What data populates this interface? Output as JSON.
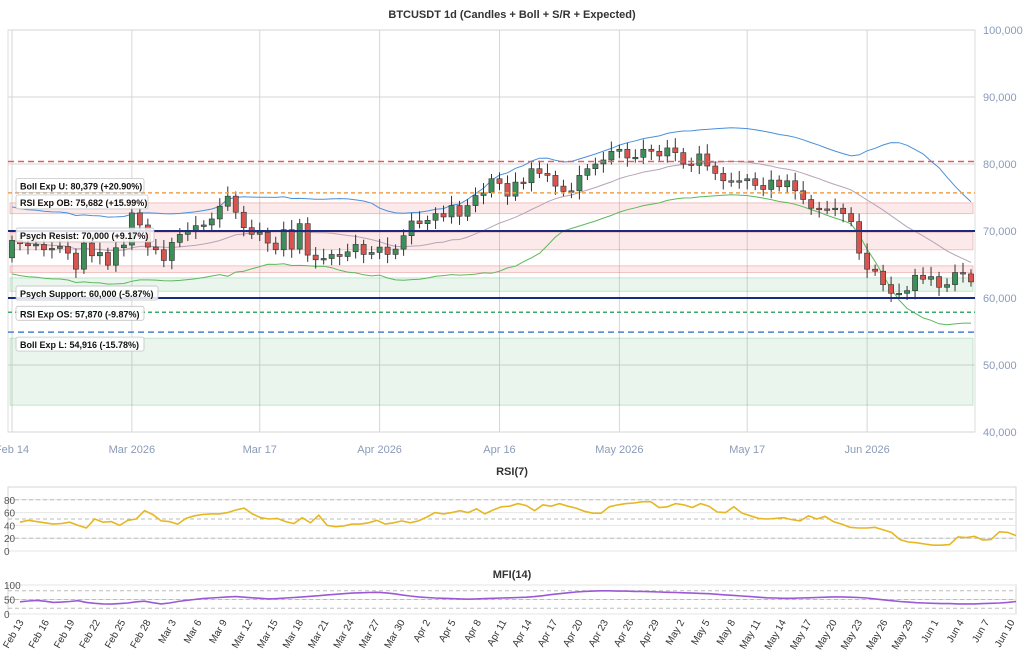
{
  "chart_data": [
    {
      "type": "candlestick",
      "title": "BTCUSDT 1d (Candles + Boll + S/R + Expected)",
      "ylim": [
        40000,
        100000
      ],
      "y_ticks": [
        "40,000",
        "50,000",
        "60,000",
        "70,000",
        "80,000",
        "90,000",
        "100,000"
      ],
      "y_tick_values": [
        40000,
        50000,
        60000,
        70000,
        80000,
        90000,
        100000
      ],
      "x_ticks": [
        "Feb 14",
        "Mar 2026",
        "Mar 17",
        "Apr 2026",
        "Apr 16",
        "May 2026",
        "May 17",
        "Jun 2026"
      ],
      "x_tick_days": [
        0,
        15,
        31,
        46,
        61,
        76,
        92,
        107
      ],
      "days": 121,
      "close": [
        68600,
        68100,
        67800,
        68000,
        67200,
        67400,
        67700,
        66700,
        64300,
        68200,
        66300,
        66800,
        64900,
        67500,
        67900,
        72700,
        70900,
        67600,
        67200,
        65600,
        68300,
        69500,
        70100,
        70800,
        70900,
        71800,
        73700,
        75200,
        72800,
        70500,
        69500,
        69800,
        68200,
        67200,
        70200,
        67300,
        71100,
        66400,
        65700,
        65900,
        66500,
        66200,
        66900,
        68000,
        66500,
        66800,
        67600,
        66500,
        67300,
        69300,
        71500,
        71100,
        71600,
        72600,
        72100,
        73800,
        72200,
        73800,
        75300,
        75700,
        77800,
        77100,
        75200,
        77300,
        77200,
        79300,
        78600,
        78300,
        76700,
        75900,
        76000,
        78300,
        79300,
        80000,
        80600,
        81900,
        82200,
        80900,
        81000,
        82200,
        81900,
        81200,
        82400,
        81700,
        80000,
        79800,
        81500,
        79700,
        78600,
        77500,
        77300,
        77500,
        77800,
        76800,
        76200,
        77600,
        76600,
        77500,
        76000,
        74700,
        73400,
        73300,
        73200,
        73400,
        72600,
        71400,
        66700,
        64300,
        64000,
        62000,
        60700,
        60700,
        61100,
        63400,
        62800,
        63200,
        61600,
        62000,
        63800,
        63600,
        62400
      ],
      "open": [
        66000,
        68600,
        68100,
        67800,
        68000,
        67200,
        67400,
        67700,
        66700,
        64300,
        68200,
        66300,
        66800,
        64900,
        67500,
        67900,
        72700,
        70900,
        67600,
        67200,
        65600,
        68300,
        69500,
        70100,
        70800,
        70900,
        71800,
        73700,
        75200,
        72800,
        70500,
        69500,
        69800,
        68200,
        67200,
        70200,
        67300,
        71100,
        66400,
        65700,
        65900,
        66500,
        66200,
        66900,
        68000,
        66500,
        66800,
        67600,
        66500,
        67300,
        69300,
        71500,
        71100,
        71600,
        72600,
        72100,
        73800,
        72200,
        73800,
        75300,
        75700,
        77800,
        77100,
        75200,
        77300,
        77200,
        79300,
        78600,
        78300,
        76700,
        75900,
        76000,
        78300,
        79300,
        80000,
        80600,
        81900,
        82200,
        80900,
        81000,
        82200,
        81900,
        81200,
        82400,
        81700,
        80000,
        79800,
        81500,
        79700,
        78600,
        77500,
        77300,
        77500,
        77800,
        76800,
        76200,
        77600,
        76600,
        77500,
        76000,
        74700,
        73400,
        73300,
        73200,
        73400,
        72600,
        71400,
        66700,
        64300,
        64000,
        62000,
        60700,
        60700,
        61100,
        63400,
        62800,
        63200,
        61600,
        62000,
        63800,
        63600
      ],
      "rsi_exp_ob": 75682,
      "boll_exp_u": 80379,
      "psych_resist": 70000,
      "psych_support": 60000,
      "rsi_exp_os": 57870,
      "boll_exp_l": 54916,
      "resistance_zones": [
        [
          72600,
          74200
        ],
        [
          67200,
          69800
        ],
        [
          63800,
          64800
        ]
      ],
      "support_zones": [
        [
          61000,
          63000
        ],
        [
          44000,
          54000
        ]
      ],
      "annotations": [
        "RSI Exp OB: 75,682 (+15.99%)",
        "Boll Exp U: 80,379 (+20.90%)",
        "Psych Resist: 70,000 (+9.17%)",
        "Psych Support: 60,000 (-5.87%)",
        "RSI Exp OS: 57,870 (-9.87%)",
        "Boll Exp L: 54,916 (-15.78%)"
      ],
      "colors": {
        "up": "#3d8f5a",
        "down": "#d9534f",
        "boll": "#4a90d9",
        "mid": "#b8a2b8",
        "lower": "#5cb85c"
      }
    },
    {
      "type": "line",
      "title": "RSI(7)",
      "ylim": [
        0,
        100
      ],
      "y_ticks": [
        "0",
        "20",
        "40",
        "60",
        "80"
      ],
      "y_tick_values": [
        0,
        20,
        40,
        60,
        80
      ],
      "ref_lines": [
        20,
        50,
        80
      ],
      "values": [
        45,
        48,
        46,
        44,
        42,
        43,
        45,
        40,
        36,
        50,
        45,
        46,
        40,
        48,
        50,
        63,
        57,
        47,
        46,
        42,
        51,
        55,
        57,
        58,
        58,
        60,
        64,
        67,
        58,
        52,
        50,
        51,
        46,
        43,
        52,
        44,
        56,
        40,
        38,
        39,
        42,
        42,
        44,
        48,
        42,
        44,
        47,
        44,
        47,
        53,
        60,
        58,
        60,
        63,
        60,
        66,
        58,
        64,
        69,
        70,
        74,
        71,
        63,
        72,
        70,
        74,
        70,
        67,
        62,
        59,
        59,
        69,
        72,
        74,
        75,
        77,
        77,
        68,
        69,
        74,
        72,
        68,
        74,
        70,
        61,
        60,
        69,
        59,
        55,
        51,
        50,
        51,
        52,
        49,
        47,
        55,
        50,
        54,
        46,
        42,
        37,
        36,
        36,
        37,
        33,
        29,
        18,
        14,
        13,
        11,
        9,
        9,
        10,
        22,
        21,
        23,
        17,
        18,
        30,
        29,
        24
      ],
      "color": "#e6b722"
    },
    {
      "type": "line",
      "title": "MFI(14)",
      "ylim": [
        0,
        100
      ],
      "y_ticks": [
        "0",
        "50",
        "100"
      ],
      "y_tick_values": [
        0,
        50,
        100
      ],
      "ref_lines": [
        20,
        50,
        80
      ],
      "x_ticks": [
        "Feb 13",
        "Feb 16",
        "Feb 19",
        "Feb 22",
        "Feb 25",
        "Feb 28",
        "Mar 3",
        "Mar 6",
        "Mar 9",
        "Mar 12",
        "Mar 15",
        "Mar 18",
        "Mar 21",
        "Mar 24",
        "Mar 27",
        "Mar 30",
        "Apr 2",
        "Apr 5",
        "Apr 8",
        "Apr 11",
        "Apr 14",
        "Apr 17",
        "Apr 20",
        "Apr 23",
        "Apr 26",
        "Apr 29",
        "May 2",
        "May 5",
        "May 8",
        "May 11",
        "May 14",
        "May 17",
        "May 20",
        "May 23",
        "May 26",
        "May 29",
        "Jun 1",
        "Jun 4",
        "Jun 7",
        "Jun 10"
      ],
      "values": [
        42,
        45,
        47,
        44,
        40,
        41,
        43,
        46,
        40,
        37,
        35,
        34,
        36,
        38,
        42,
        44,
        39,
        35,
        38,
        43,
        47,
        50,
        53,
        55,
        57,
        59,
        60,
        58,
        56,
        54,
        52,
        53,
        55,
        57,
        59,
        61,
        63,
        66,
        68,
        70,
        72,
        73,
        74,
        75,
        73,
        70,
        66,
        62,
        59,
        57,
        55,
        54,
        53,
        52,
        51,
        52,
        53,
        54,
        55,
        56,
        57,
        58,
        60,
        63,
        67,
        70,
        73,
        76,
        78,
        79,
        80,
        80,
        79,
        79,
        78,
        78,
        77,
        76,
        75,
        74,
        73,
        72,
        71,
        70,
        68,
        66,
        64,
        62,
        60,
        58,
        56,
        55,
        54,
        54,
        55,
        56,
        57,
        58,
        59,
        59,
        58,
        57,
        55,
        52,
        49,
        46,
        43,
        41,
        39,
        38,
        37,
        36,
        36,
        35,
        35,
        35,
        36,
        37,
        38,
        40,
        43
      ],
      "color": "#9b59d6"
    }
  ]
}
